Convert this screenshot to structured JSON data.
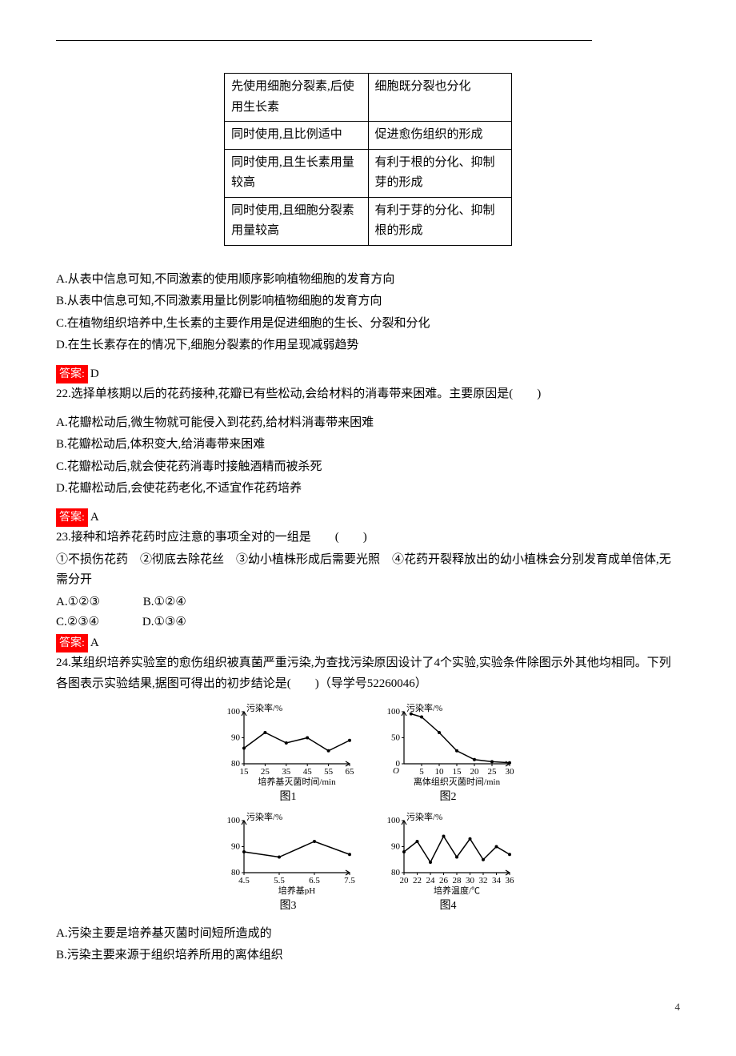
{
  "table": {
    "rows": [
      {
        "left": "先使用细胞分裂素,后使用生长素",
        "right": "细胞既分裂也分化"
      },
      {
        "left": "同时使用,且比例适中",
        "right": "促进愈伤组织的形成"
      },
      {
        "left": "同时使用,且生长素用量较高",
        "right": "有利于根的分化、抑制芽的形成"
      },
      {
        "left": "同时使用,且细胞分裂素用量较高",
        "right": "有利于芽的分化、抑制根的形成"
      }
    ]
  },
  "q21": {
    "A": "A.从表中信息可知,不同激素的使用顺序影响植物细胞的发育方向",
    "B": "B.从表中信息可知,不同激素用量比例影响植物细胞的发育方向",
    "C": "C.在植物组织培养中,生长素的主要作用是促进细胞的生长、分裂和分化",
    "D": "D.在生长素存在的情况下,细胞分裂素的作用呈现减弱趋势",
    "answer_label": "答案:",
    "answer": "D"
  },
  "q22": {
    "stem": "22.选择单核期以后的花药接种,花瓣已有些松动,会给材料的消毒带来困难。主要原因是(　　)",
    "A": "A.花瓣松动后,微生物就可能侵入到花药,给材料消毒带来困难",
    "B": "B.花瓣松动后,体积变大,给消毒带来困难",
    "C": "C.花瓣松动后,就会使花药消毒时接触酒精而被杀死",
    "D": "D.花瓣松动后,会使花药老化,不适宜作花药培养",
    "answer_label": "答案:",
    "answer": "A"
  },
  "q23": {
    "stem": "23.接种和培养花药时应注意的事项全对的一组是　　(　　)",
    "items": "①不损伤花药　②彻底去除花丝　③幼小植株形成后需要光照　④花药开裂释放出的幼小植株会分别发育成单倍体,无需分开",
    "optA": "A.①②③",
    "optB": "B.①②④",
    "optC": "C.②③④",
    "optD": "D.①③④",
    "answer_label": "答案:",
    "answer": "A"
  },
  "q24": {
    "stem": "24.某组织培养实验室的愈伤组织被真菌严重污染,为查找污染原因设计了4个实验,实验条件除图示外其他均相同。下列各图表示实验结果,据图可得出的初步结论是(　　)（导学号52260046）",
    "A": "A.污染主要是培养基灭菌时间短所造成的",
    "B": "B.污染主要来源于组织培养所用的离体组织"
  },
  "charts": {
    "c1": {
      "ylabel": "污染率/%",
      "xlabel": "培养基灭菌时间/min",
      "caption": "图1",
      "yticks": [
        80,
        90,
        100
      ],
      "xticks": [
        15,
        25,
        35,
        45,
        55,
        65
      ],
      "ylim": [
        80,
        100
      ],
      "xlim": [
        15,
        65
      ],
      "data_y": [
        86,
        92,
        88,
        90,
        85,
        89
      ]
    },
    "c2": {
      "ylabel": "污染率/%",
      "xlabel": "离体组织灭菌时间/min",
      "caption": "图2",
      "yticks": [
        0,
        50,
        100
      ],
      "xticks": [
        5,
        10,
        15,
        20,
        25,
        30
      ],
      "ylim": [
        0,
        100
      ],
      "xlim": [
        0,
        30
      ],
      "data_x": [
        2,
        5,
        10,
        15,
        20,
        25,
        30
      ],
      "data_y": [
        96,
        90,
        60,
        25,
        8,
        4,
        2
      ]
    },
    "c3": {
      "ylabel": "污染率/%",
      "xlabel": "培养基pH",
      "caption": "图3",
      "yticks": [
        80,
        90,
        100
      ],
      "xticks": [
        4.5,
        5.5,
        6.5,
        7.5
      ],
      "ylim": [
        80,
        100
      ],
      "xlim": [
        4.5,
        7.5
      ],
      "data_y": [
        88,
        86,
        92,
        87
      ]
    },
    "c4": {
      "ylabel": "污染率/%",
      "xlabel": "培养温度/℃",
      "caption": "图4",
      "yticks": [
        80,
        90,
        100
      ],
      "xticks": [
        20,
        22,
        24,
        26,
        28,
        30,
        32,
        34,
        36
      ],
      "ylim": [
        80,
        100
      ],
      "xlim": [
        20,
        36
      ],
      "data_y": [
        88,
        92,
        84,
        94,
        86,
        93,
        85,
        90,
        87
      ]
    },
    "style": {
      "axis_color": "#000000",
      "line_color": "#000000",
      "line_width": 1.5,
      "fontsize": 11,
      "width": 170,
      "height": 105
    }
  },
  "page": "4"
}
